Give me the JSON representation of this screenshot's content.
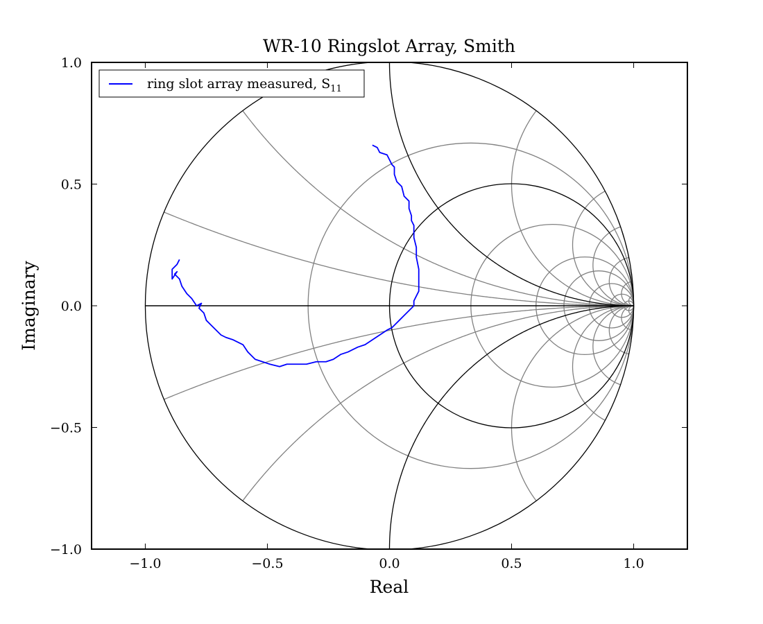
{
  "chart_data": {
    "type": "line",
    "title": "WR-10 Ringslot Array, Smith",
    "xlabel": "Real",
    "ylabel": "Imaginary",
    "xlim": [
      -1.22,
      1.22
    ],
    "ylim": [
      -1.0,
      1.0
    ],
    "x_ticks": [
      -1.0,
      -0.5,
      0.0,
      0.5,
      1.0
    ],
    "x_tick_labels": [
      "−1.0",
      "−0.5",
      "0.0",
      "0.5",
      "1.0"
    ],
    "y_ticks": [
      -1.0,
      -0.5,
      0.0,
      0.5,
      1.0
    ],
    "y_tick_labels": [
      "−1.0",
      "−0.5",
      "0.0",
      "0.5",
      "1.0"
    ],
    "legend_position": "top-left",
    "grid": "smith",
    "smith_grid": {
      "resistance_circles_black": [
        0,
        1
      ],
      "resistance_circles_gray": [
        0.5,
        2,
        4,
        6,
        10,
        20,
        50
      ],
      "reactance_arcs_black": [
        1
      ],
      "reactance_arcs_gray": [
        0.2,
        0.5,
        2,
        4,
        6,
        10,
        20,
        50
      ],
      "grid_color": "#808080",
      "major_color": "#000000"
    },
    "series": [
      {
        "name": "ring slot array measured, S",
        "name_subscript": "11",
        "color": "#0000ff",
        "x": [
          -0.07,
          -0.05,
          -0.04,
          -0.01,
          0.01,
          0.02,
          0.02,
          0.03,
          0.05,
          0.06,
          0.08,
          0.08,
          0.09,
          0.09,
          0.1,
          0.1,
          0.11,
          0.11,
          0.12,
          0.12,
          0.12,
          0.12,
          0.11,
          0.1,
          0.1,
          0.08,
          0.06,
          0.04,
          0.02,
          0.01,
          -0.01,
          -0.04,
          -0.07,
          -0.1,
          -0.13,
          -0.17,
          -0.2,
          -0.23,
          -0.26,
          -0.3,
          -0.34,
          -0.38,
          -0.42,
          -0.45,
          -0.49,
          -0.52,
          -0.55,
          -0.56,
          -0.58,
          -0.6,
          -0.62,
          -0.64,
          -0.67,
          -0.69,
          -0.71,
          -0.73,
          -0.75,
          -0.76,
          -0.78,
          -0.77,
          -0.79,
          -0.81,
          -0.83,
          -0.85,
          -0.86,
          -0.88,
          -0.87,
          -0.89,
          -0.89,
          -0.87,
          -0.86
        ],
        "y": [
          0.66,
          0.65,
          0.63,
          0.62,
          0.58,
          0.57,
          0.54,
          0.51,
          0.49,
          0.45,
          0.43,
          0.4,
          0.37,
          0.35,
          0.33,
          0.28,
          0.24,
          0.2,
          0.15,
          0.12,
          0.08,
          0.06,
          0.04,
          0.02,
          0.0,
          -0.02,
          -0.04,
          -0.06,
          -0.08,
          -0.09,
          -0.1,
          -0.12,
          -0.14,
          -0.16,
          -0.17,
          -0.19,
          -0.2,
          -0.22,
          -0.23,
          -0.23,
          -0.24,
          -0.24,
          -0.24,
          -0.25,
          -0.24,
          -0.23,
          -0.22,
          -0.21,
          -0.19,
          -0.16,
          -0.15,
          -0.14,
          -0.13,
          -0.12,
          -0.1,
          -0.08,
          -0.06,
          -0.03,
          -0.01,
          0.01,
          0.0,
          0.03,
          0.05,
          0.08,
          0.11,
          0.13,
          0.14,
          0.11,
          0.15,
          0.17,
          0.19
        ]
      }
    ]
  }
}
